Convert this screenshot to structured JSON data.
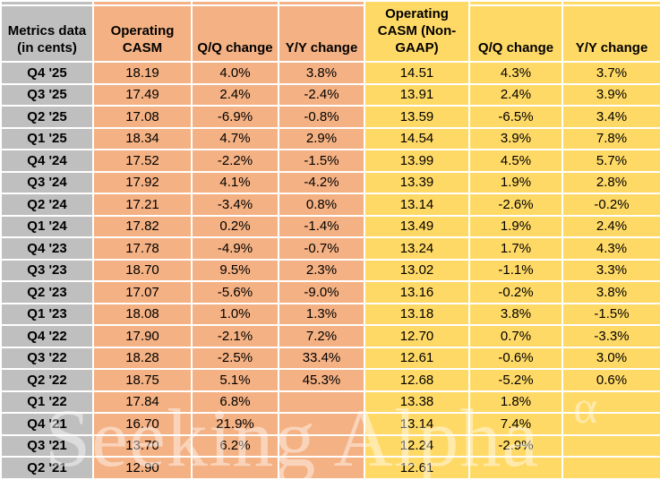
{
  "watermark": {
    "text": "Seeking Alpha",
    "symbol": "α"
  },
  "colors": {
    "label_gray": "#BFBFBF",
    "gaap_orange": "#F4B183",
    "non_gaap_yellow": "#FFD966",
    "gridline": "#FFFFFF",
    "text": "#000000"
  },
  "chart_data": {
    "type": "table",
    "columns": [
      "Metrics data (in cents)",
      "Operating CASM",
      "Q/Q change",
      "Y/Y change",
      "Operating CASM (Non-GAAP)",
      "Q/Q change",
      "Y/Y change"
    ],
    "rows": [
      [
        "Q4 '25",
        "18.19",
        "4.0%",
        "3.8%",
        "14.51",
        "4.3%",
        "3.7%"
      ],
      [
        "Q3 '25",
        "17.49",
        "2.4%",
        "-2.4%",
        "13.91",
        "2.4%",
        "3.9%"
      ],
      [
        "Q2 '25",
        "17.08",
        "-6.9%",
        "-0.8%",
        "13.59",
        "-6.5%",
        "3.4%"
      ],
      [
        "Q1 '25",
        "18.34",
        "4.7%",
        "2.9%",
        "14.54",
        "3.9%",
        "7.8%"
      ],
      [
        "Q4 '24",
        "17.52",
        "-2.2%",
        "-1.5%",
        "13.99",
        "4.5%",
        "5.7%"
      ],
      [
        "Q3 '24",
        "17.92",
        "4.1%",
        "-4.2%",
        "13.39",
        "1.9%",
        "2.8%"
      ],
      [
        "Q2 '24",
        "17.21",
        "-3.4%",
        "0.8%",
        "13.14",
        "-2.6%",
        "-0.2%"
      ],
      [
        "Q1 '24",
        "17.82",
        "0.2%",
        "-1.4%",
        "13.49",
        "1.9%",
        "2.4%"
      ],
      [
        "Q4 '23",
        "17.78",
        "-4.9%",
        "-0.7%",
        "13.24",
        "1.7%",
        "4.3%"
      ],
      [
        "Q3 '23",
        "18.70",
        "9.5%",
        "2.3%",
        "13.02",
        "-1.1%",
        "3.3%"
      ],
      [
        "Q2 '23",
        "17.07",
        "-5.6%",
        "-9.0%",
        "13.16",
        "-0.2%",
        "3.8%"
      ],
      [
        "Q1 '23",
        "18.08",
        "1.0%",
        "1.3%",
        "13.18",
        "3.8%",
        "-1.5%"
      ],
      [
        "Q4 '22",
        "17.90",
        "-2.1%",
        "7.2%",
        "12.70",
        "0.7%",
        "-3.3%"
      ],
      [
        "Q3 '22",
        "18.28",
        "-2.5%",
        "33.4%",
        "12.61",
        "-0.6%",
        "3.0%"
      ],
      [
        "Q2 '22",
        "18.75",
        "5.1%",
        "45.3%",
        "12.68",
        "-5.2%",
        "0.6%"
      ],
      [
        "Q1 '22",
        "17.84",
        "6.8%",
        "",
        "13.38",
        "1.8%",
        ""
      ],
      [
        "Q4 '21",
        "16.70",
        "21.9%",
        "",
        "13.14",
        "7.4%",
        ""
      ],
      [
        "Q3 '21",
        "13.70",
        "6.2%",
        "",
        "12.24",
        "-2.9%",
        ""
      ],
      [
        "Q2 '21",
        "12.90",
        "",
        "",
        "12.61",
        "",
        ""
      ]
    ]
  }
}
